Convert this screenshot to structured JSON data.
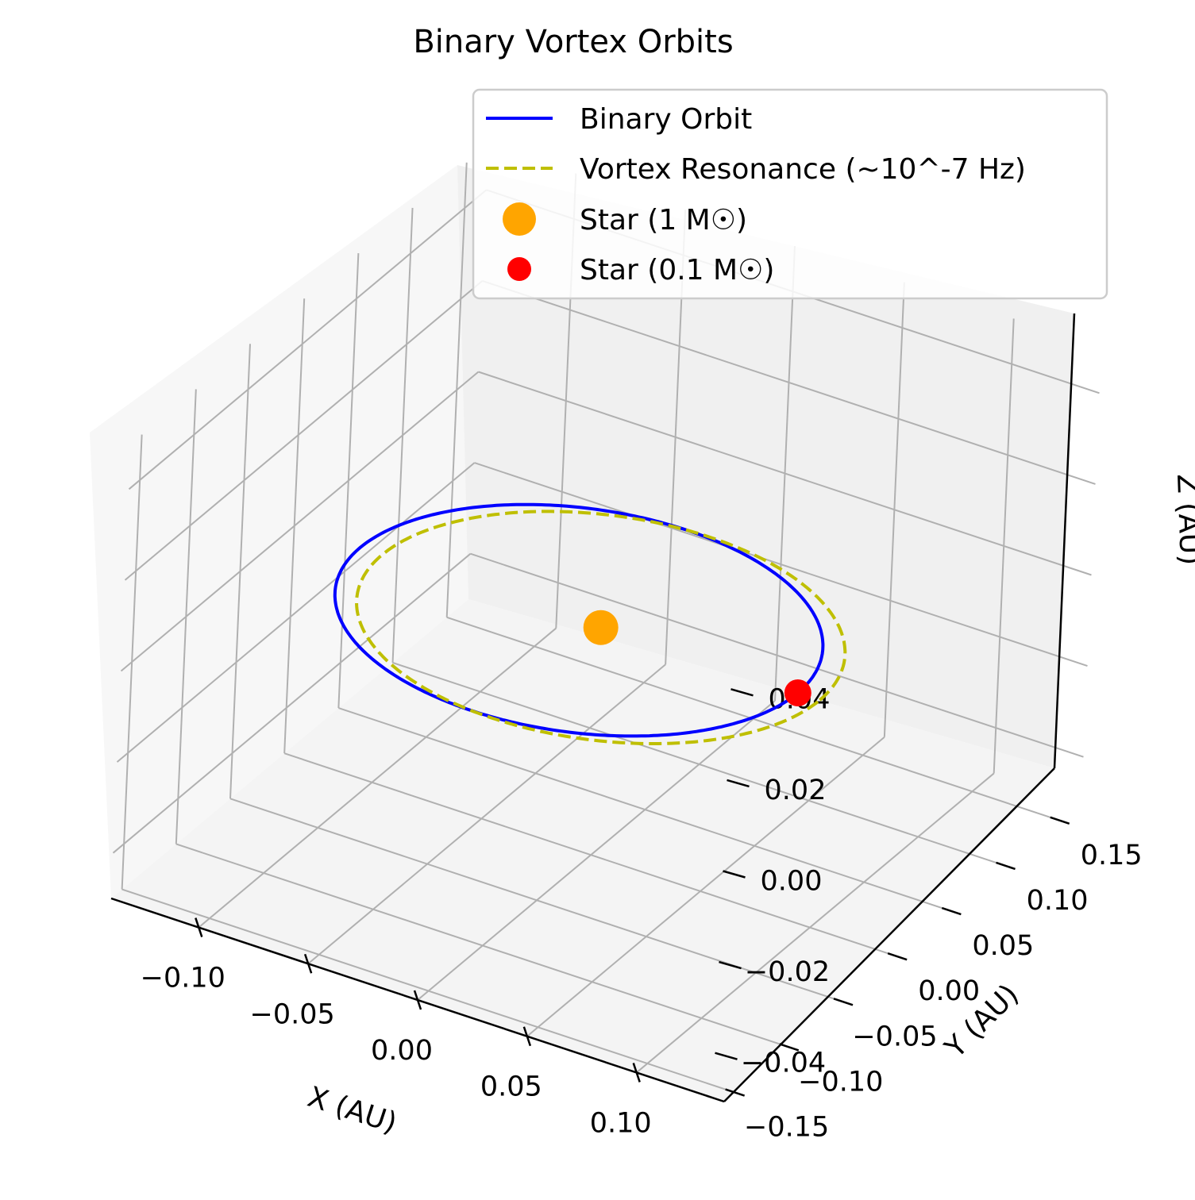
{
  "chart_data": {
    "type": "line",
    "projection": "3d",
    "title": "Binary Vortex Orbits",
    "xlabel": "X (AU)",
    "ylabel": "Y (AU)",
    "zlabel": "Z (AU)",
    "xticks": [
      "−0.10",
      "−0.05",
      "0.00",
      "0.05",
      "0.10"
    ],
    "yticks": [
      "−0.15",
      "−0.10",
      "−0.05",
      "0.00",
      "0.05",
      "0.10",
      "0.15"
    ],
    "zticks": [
      "−0.04",
      "−0.02",
      "0.00",
      "0.02",
      "0.04"
    ],
    "xlim": [
      -0.14,
      0.14
    ],
    "ylim": [
      -0.16,
      0.17
    ],
    "zlim": [
      -0.05,
      0.05
    ],
    "grid": true,
    "legend_position": "upper right",
    "series": [
      {
        "name": "Binary Orbit",
        "kind": "line",
        "style": "solid",
        "color": "#0000ff",
        "shape": "ellipse",
        "semi_major_axis": 0.1,
        "eccentricity": 0.1,
        "z": 0
      },
      {
        "name": "Vortex Resonance (~10^-7 Hz)",
        "kind": "line",
        "style": "dashed",
        "color": "#bfbf00",
        "shape": "circle",
        "radius": 0.1,
        "z": 0
      },
      {
        "name": "Star (1 M☉)",
        "kind": "scatter",
        "color": "#ffa500",
        "x": 0,
        "y": 0,
        "z": 0
      },
      {
        "name": "Star (0.1 M☉)",
        "kind": "scatter",
        "color": "#ff0000",
        "x": 0.09,
        "y": 0,
        "z": 0
      }
    ]
  }
}
